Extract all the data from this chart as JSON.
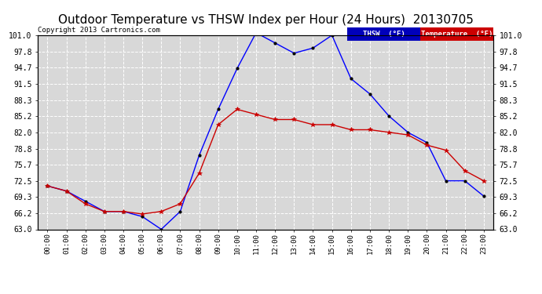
{
  "title": "Outdoor Temperature vs THSW Index per Hour (24 Hours)  20130705",
  "copyright": "Copyright 2013 Cartronics.com",
  "hours": [
    "00:00",
    "01:00",
    "02:00",
    "03:00",
    "04:00",
    "05:00",
    "06:00",
    "07:00",
    "08:00",
    "09:00",
    "10:00",
    "11:00",
    "12:00",
    "13:00",
    "14:00",
    "15:00",
    "16:00",
    "17:00",
    "18:00",
    "19:00",
    "20:00",
    "21:00",
    "22:00",
    "23:00"
  ],
  "thsw": [
    71.5,
    70.5,
    68.5,
    66.5,
    66.5,
    65.5,
    63.0,
    66.5,
    77.5,
    86.5,
    94.5,
    101.5,
    99.5,
    97.5,
    98.5,
    101.0,
    92.5,
    89.5,
    85.2,
    82.0,
    80.0,
    72.5,
    72.5,
    69.5
  ],
  "temperature": [
    71.5,
    70.5,
    68.0,
    66.5,
    66.5,
    66.0,
    66.5,
    68.0,
    74.0,
    83.5,
    86.5,
    85.5,
    84.5,
    84.5,
    83.5,
    83.5,
    82.5,
    82.5,
    82.0,
    81.5,
    79.5,
    78.5,
    74.5,
    72.5
  ],
  "ylim": [
    63.0,
    101.0
  ],
  "yticks": [
    63.0,
    66.2,
    69.3,
    72.5,
    75.7,
    78.8,
    82.0,
    85.2,
    88.3,
    91.5,
    94.7,
    97.8,
    101.0
  ],
  "thsw_color": "#0000ff",
  "temp_color": "#cc0000",
  "bg_color": "#ffffff",
  "plot_bg_color": "#d8d8d8",
  "grid_color": "#ffffff",
  "title_fontsize": 11,
  "legend_thsw_bg": "#0000bb",
  "legend_temp_bg": "#cc0000"
}
